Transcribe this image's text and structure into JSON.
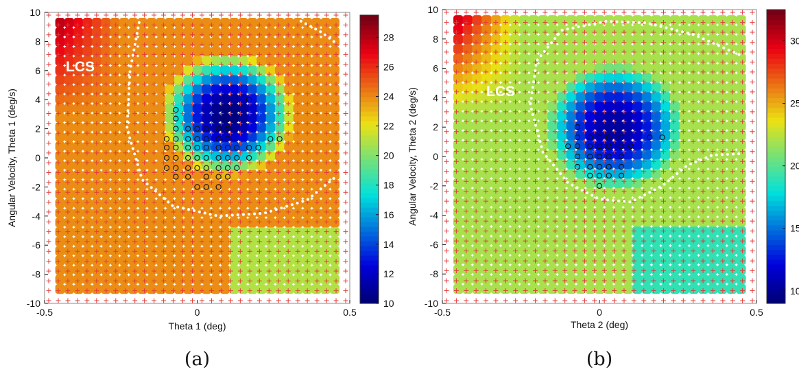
{
  "chart_data": [
    {
      "type": "heatmap",
      "panel_label": "(a)",
      "xlabel": "Theta 1 (deg)",
      "ylabel": "Angular Velocity, Theta 1 (deg/s)",
      "xlim": [
        -0.5,
        0.5
      ],
      "ylim": [
        -10,
        10
      ],
      "x_ticks": [
        "-0.5",
        "0",
        "0.5"
      ],
      "y_ticks": [
        "-10",
        "-8",
        "-6",
        "-4",
        "-2",
        "0",
        "2",
        "4",
        "6",
        "8",
        "10"
      ],
      "colorbar": {
        "min": 10,
        "max": 29.5,
        "ticks": [
          "10",
          "12",
          "14",
          "16",
          "18",
          "20",
          "22",
          "24",
          "26",
          "28"
        ]
      },
      "annotation": "LCS",
      "basin": {
        "center": [
          0.1,
          3.0
        ],
        "value_min": 10.0,
        "value_far": 24.0,
        "value_edge": 28.0
      },
      "lcs_curve": [
        [
          -0.19,
          9.3
        ],
        [
          -0.22,
          6.0
        ],
        [
          -0.23,
          2.0
        ],
        [
          -0.18,
          -1.5
        ],
        [
          -0.08,
          -3.3
        ],
        [
          0.07,
          -4.0
        ],
        [
          0.22,
          -3.8
        ],
        [
          0.36,
          -2.9
        ],
        [
          0.46,
          -1.2
        ]
      ],
      "lcs_curve2": [
        [
          0.34,
          9.4
        ],
        [
          0.41,
          8.6
        ],
        [
          0.46,
          7.8
        ]
      ],
      "markers": [
        [
          -0.07,
          3.3
        ],
        [
          -0.07,
          2.7
        ],
        [
          -0.07,
          2.0
        ],
        [
          -0.03,
          2.0
        ],
        [
          0.0,
          2.0
        ],
        [
          0.03,
          2.0
        ],
        [
          0.07,
          2.0
        ],
        [
          0.1,
          2.0
        ],
        [
          -0.07,
          1.3
        ],
        [
          -0.03,
          1.3
        ],
        [
          0.0,
          1.3
        ],
        [
          0.03,
          1.3
        ],
        [
          0.07,
          1.3
        ],
        [
          0.1,
          1.3
        ],
        [
          -0.1,
          1.3
        ],
        [
          -0.1,
          0.7
        ],
        [
          -0.07,
          0.7
        ],
        [
          -0.03,
          0.7
        ],
        [
          0.0,
          0.7
        ],
        [
          0.03,
          0.7
        ],
        [
          0.07,
          0.7
        ],
        [
          0.1,
          0.7
        ],
        [
          0.13,
          0.7
        ],
        [
          0.17,
          0.7
        ],
        [
          0.2,
          0.7
        ],
        [
          -0.1,
          0.0
        ],
        [
          -0.07,
          0.0
        ],
        [
          -0.03,
          0.0
        ],
        [
          0.0,
          0.0
        ],
        [
          0.03,
          0.0
        ],
        [
          0.07,
          0.0
        ],
        [
          0.1,
          0.0
        ],
        [
          0.13,
          0.0
        ],
        [
          0.17,
          0.0
        ],
        [
          -0.1,
          -0.7
        ],
        [
          -0.07,
          -0.7
        ],
        [
          -0.03,
          -0.7
        ],
        [
          0.0,
          -0.7
        ],
        [
          0.03,
          -0.7
        ],
        [
          0.07,
          -0.7
        ],
        [
          0.1,
          -0.7
        ],
        [
          0.13,
          -0.7
        ],
        [
          -0.07,
          -1.3
        ],
        [
          -0.03,
          -1.3
        ],
        [
          0.03,
          -1.3
        ],
        [
          0.07,
          -1.3
        ],
        [
          0.1,
          -1.3
        ],
        [
          0.0,
          -2.0
        ],
        [
          0.03,
          -2.0
        ],
        [
          0.07,
          -2.0
        ],
        [
          0.17,
          4.0
        ],
        [
          0.24,
          1.3
        ],
        [
          0.27,
          1.3
        ]
      ]
    },
    {
      "type": "heatmap",
      "panel_label": "(b)",
      "xlabel": "Theta 2 (deg)",
      "ylabel": "Angular Velocity, Theta 2 (deg/s)",
      "xlim": [
        -0.5,
        0.5
      ],
      "ylim": [
        -10,
        10
      ],
      "x_ticks": [
        "-0.5",
        "0",
        "0.5"
      ],
      "y_ticks": [
        "-10",
        "-8",
        "-6",
        "-4",
        "-2",
        "0",
        "2",
        "4",
        "6",
        "8",
        "10"
      ],
      "colorbar": {
        "min": 9,
        "max": 32.5,
        "ticks": [
          "10",
          "15",
          "20",
          "25",
          "30"
        ]
      },
      "annotation": "LCS",
      "basin": {
        "center": [
          0.05,
          2.0
        ],
        "value_min": 10.0,
        "value_far": 22.0,
        "value_edge": 30.0
      },
      "lcs_curve": [
        [
          0.02,
          9.2
        ],
        [
          -0.12,
          8.6
        ],
        [
          -0.2,
          6.5
        ],
        [
          -0.22,
          3.5
        ],
        [
          -0.18,
          0.3
        ],
        [
          -0.1,
          -1.8
        ],
        [
          0.0,
          -2.9
        ],
        [
          0.1,
          -3.1
        ],
        [
          0.2,
          -2.0
        ],
        [
          0.28,
          -0.6
        ],
        [
          0.36,
          0.1
        ],
        [
          0.46,
          0.2
        ]
      ],
      "lcs_curve2": [
        [
          0.02,
          9.2
        ],
        [
          0.15,
          9.1
        ],
        [
          0.3,
          8.3
        ],
        [
          0.46,
          6.8
        ]
      ],
      "markers": [
        [
          -0.07,
          2.0
        ],
        [
          -0.07,
          1.3
        ],
        [
          -0.03,
          1.3
        ],
        [
          0.0,
          1.3
        ],
        [
          0.03,
          1.3
        ],
        [
          0.07,
          1.3
        ],
        [
          -0.1,
          0.7
        ],
        [
          -0.07,
          0.7
        ],
        [
          -0.03,
          0.7
        ],
        [
          0.0,
          0.7
        ],
        [
          0.03,
          0.7
        ],
        [
          0.07,
          0.7
        ],
        [
          0.1,
          0.7
        ],
        [
          -0.07,
          0.0
        ],
        [
          -0.03,
          0.0
        ],
        [
          0.0,
          0.0
        ],
        [
          0.03,
          0.0
        ],
        [
          0.07,
          0.0
        ],
        [
          -0.07,
          -0.7
        ],
        [
          -0.03,
          -0.7
        ],
        [
          0.0,
          -0.7
        ],
        [
          0.03,
          -0.7
        ],
        [
          0.07,
          -0.7
        ],
        [
          -0.03,
          -1.3
        ],
        [
          0.0,
          -1.3
        ],
        [
          0.03,
          -1.3
        ],
        [
          0.07,
          -1.3
        ],
        [
          0.0,
          -2.0
        ],
        [
          0.16,
          1.3
        ],
        [
          0.2,
          1.3
        ]
      ]
    }
  ]
}
